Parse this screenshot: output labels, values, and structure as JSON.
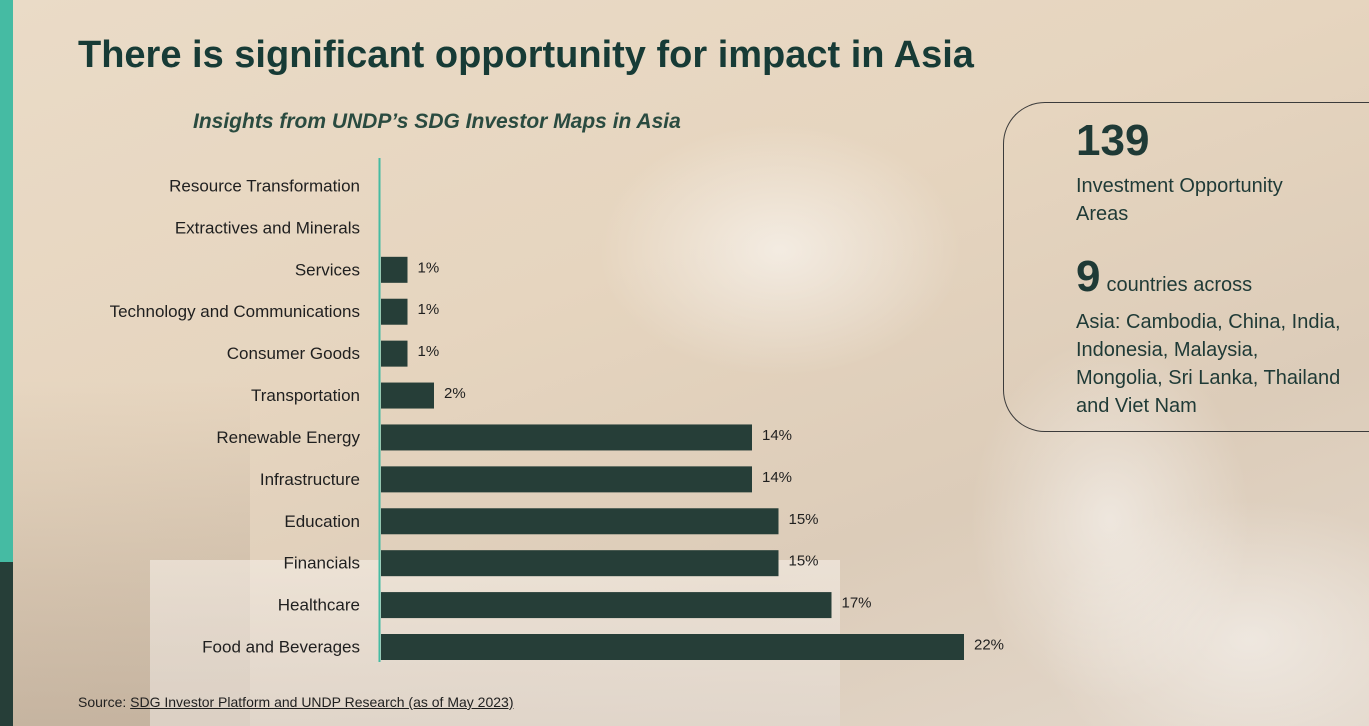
{
  "title": "There is significant opportunity for impact in Asia",
  "subtitle": "Insights from UNDP’s SDG Investor Maps in Asia",
  "stats": {
    "stat1_number": "139",
    "stat1_label": "Investment Opportunity Areas",
    "stat2_number": "9",
    "stat2_inline": "countries across",
    "stat2_desc": "Asia: Cambodia, China, India, Indonesia, Malaysia, Mongolia, Sri Lanka, Thailand and Viet Nam"
  },
  "source": {
    "prefix": "Source:",
    "link_text": "SDG Investor Platform and UNDP Research (as of May 2023)"
  },
  "colors": {
    "bar": "#263e38",
    "accent_teal": "#45bba3",
    "accent_dark": "#263e38",
    "axis": "#45bba3"
  },
  "chart_data": {
    "type": "bar",
    "orientation": "horizontal",
    "unit": "%",
    "categories": [
      "Resource Transformation",
      "Extractives and Minerals",
      "Services",
      "Technology and Communications",
      "Consumer Goods",
      "Transportation",
      "Renewable Energy",
      "Infrastructure",
      "Education",
      "Financials",
      "Healthcare",
      "Food and Beverages"
    ],
    "values": [
      0,
      0,
      1,
      1,
      1,
      2,
      14,
      14,
      15,
      15,
      17,
      22
    ],
    "value_labels": [
      "",
      "",
      "1%",
      "1%",
      "1%",
      "2%",
      "14%",
      "14%",
      "15%",
      "15%",
      "17%",
      "22%"
    ],
    "xlim": [
      0,
      22
    ],
    "grid": false,
    "legend": "none"
  }
}
